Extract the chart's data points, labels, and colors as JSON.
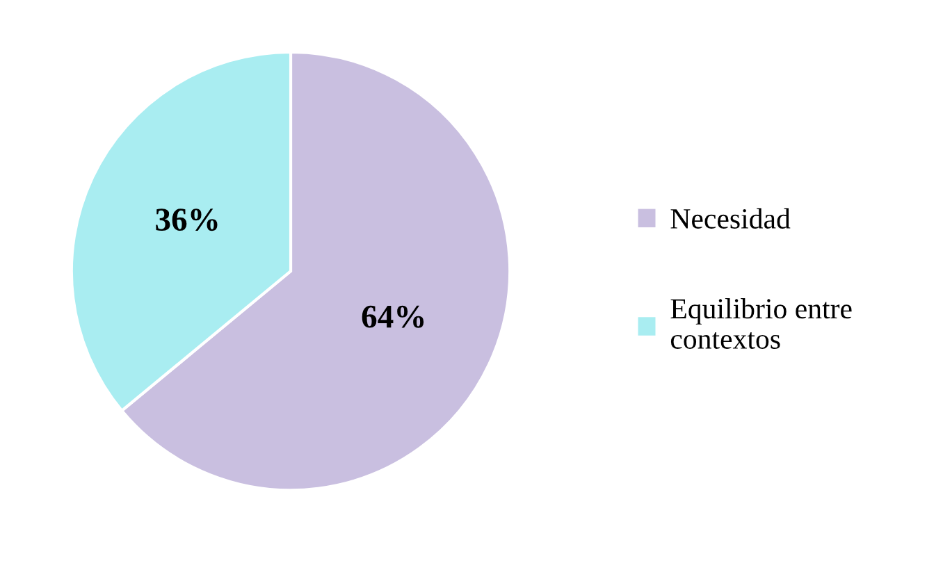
{
  "chart_data": {
    "type": "pie",
    "categories": [
      "Necesidad",
      "Equilibrio entre contextos"
    ],
    "values": [
      64,
      36
    ],
    "colors": [
      "#c9bfe0",
      "#a9edf1"
    ],
    "value_labels": [
      "64%",
      "36%"
    ],
    "legend": "right"
  }
}
